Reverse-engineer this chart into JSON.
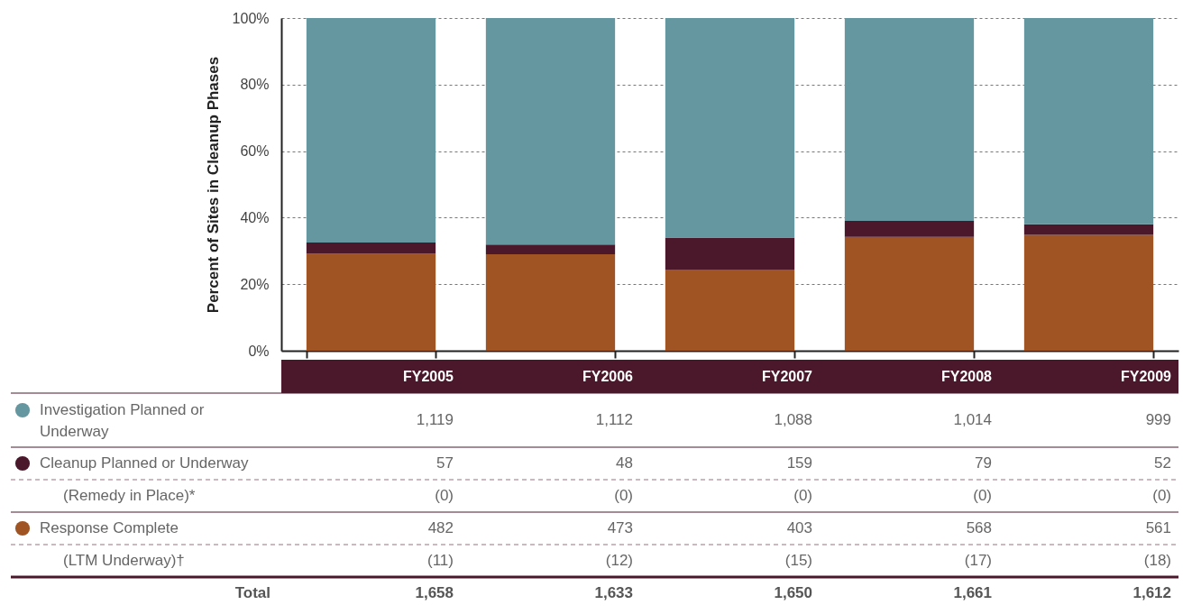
{
  "chart_data": {
    "type": "bar",
    "stacked": true,
    "ylabel": "Percent of Sites in Cleanup Phases",
    "categories": [
      "FY2005",
      "FY2006",
      "FY2007",
      "FY2008",
      "FY2009"
    ],
    "series": [
      {
        "name": "(LTM Underway)†",
        "color": null,
        "values": [
          null,
          null,
          null,
          null,
          null
        ],
        "value_labels": [
          "(11)",
          "(12)",
          "(15)",
          "(17)",
          "(18)"
        ]
      },
      {
        "name": "Response Complete",
        "color": "#a05423",
        "values": [
          29.1,
          29.0,
          24.4,
          34.2,
          34.8
        ]
      },
      {
        "name": "(Remedy in Place)*",
        "color": null,
        "values": [
          null,
          null,
          null,
          null,
          null
        ],
        "value_labels": [
          "(0)",
          "(0)",
          "(0)",
          "(0)",
          "(0)"
        ]
      },
      {
        "name": "Cleanup Planned or Underway",
        "color": "#4a172b",
        "values": [
          3.4,
          2.9,
          9.6,
          4.8,
          3.2
        ]
      },
      {
        "name": "Investigation Planned or Underway",
        "color": "#6497a0",
        "values": [
          67.5,
          68.1,
          66.0,
          61.0,
          62.0
        ]
      }
    ],
    "annotations": [
      "1,119",
      "1,112",
      "1,088",
      "1,014",
      "999",
      "57",
      "48",
      "159",
      "79",
      "52",
      "482",
      "473",
      "403",
      "568",
      "561",
      "Total",
      "1,658",
      "1,633",
      "1,650",
      "1,661",
      "1,612"
    ],
    "ylim": [
      0,
      100
    ],
    "yticks": [
      {
        "value": 0,
        "label": "0%"
      },
      {
        "value": 20,
        "label": "20%"
      },
      {
        "value": 40,
        "label": "40%"
      },
      {
        "value": 60,
        "label": "60%"
      },
      {
        "value": 80,
        "label": "80%"
      },
      {
        "value": 100,
        "label": "100%"
      }
    ],
    "grid": "y",
    "legend": "bottom left"
  }
}
